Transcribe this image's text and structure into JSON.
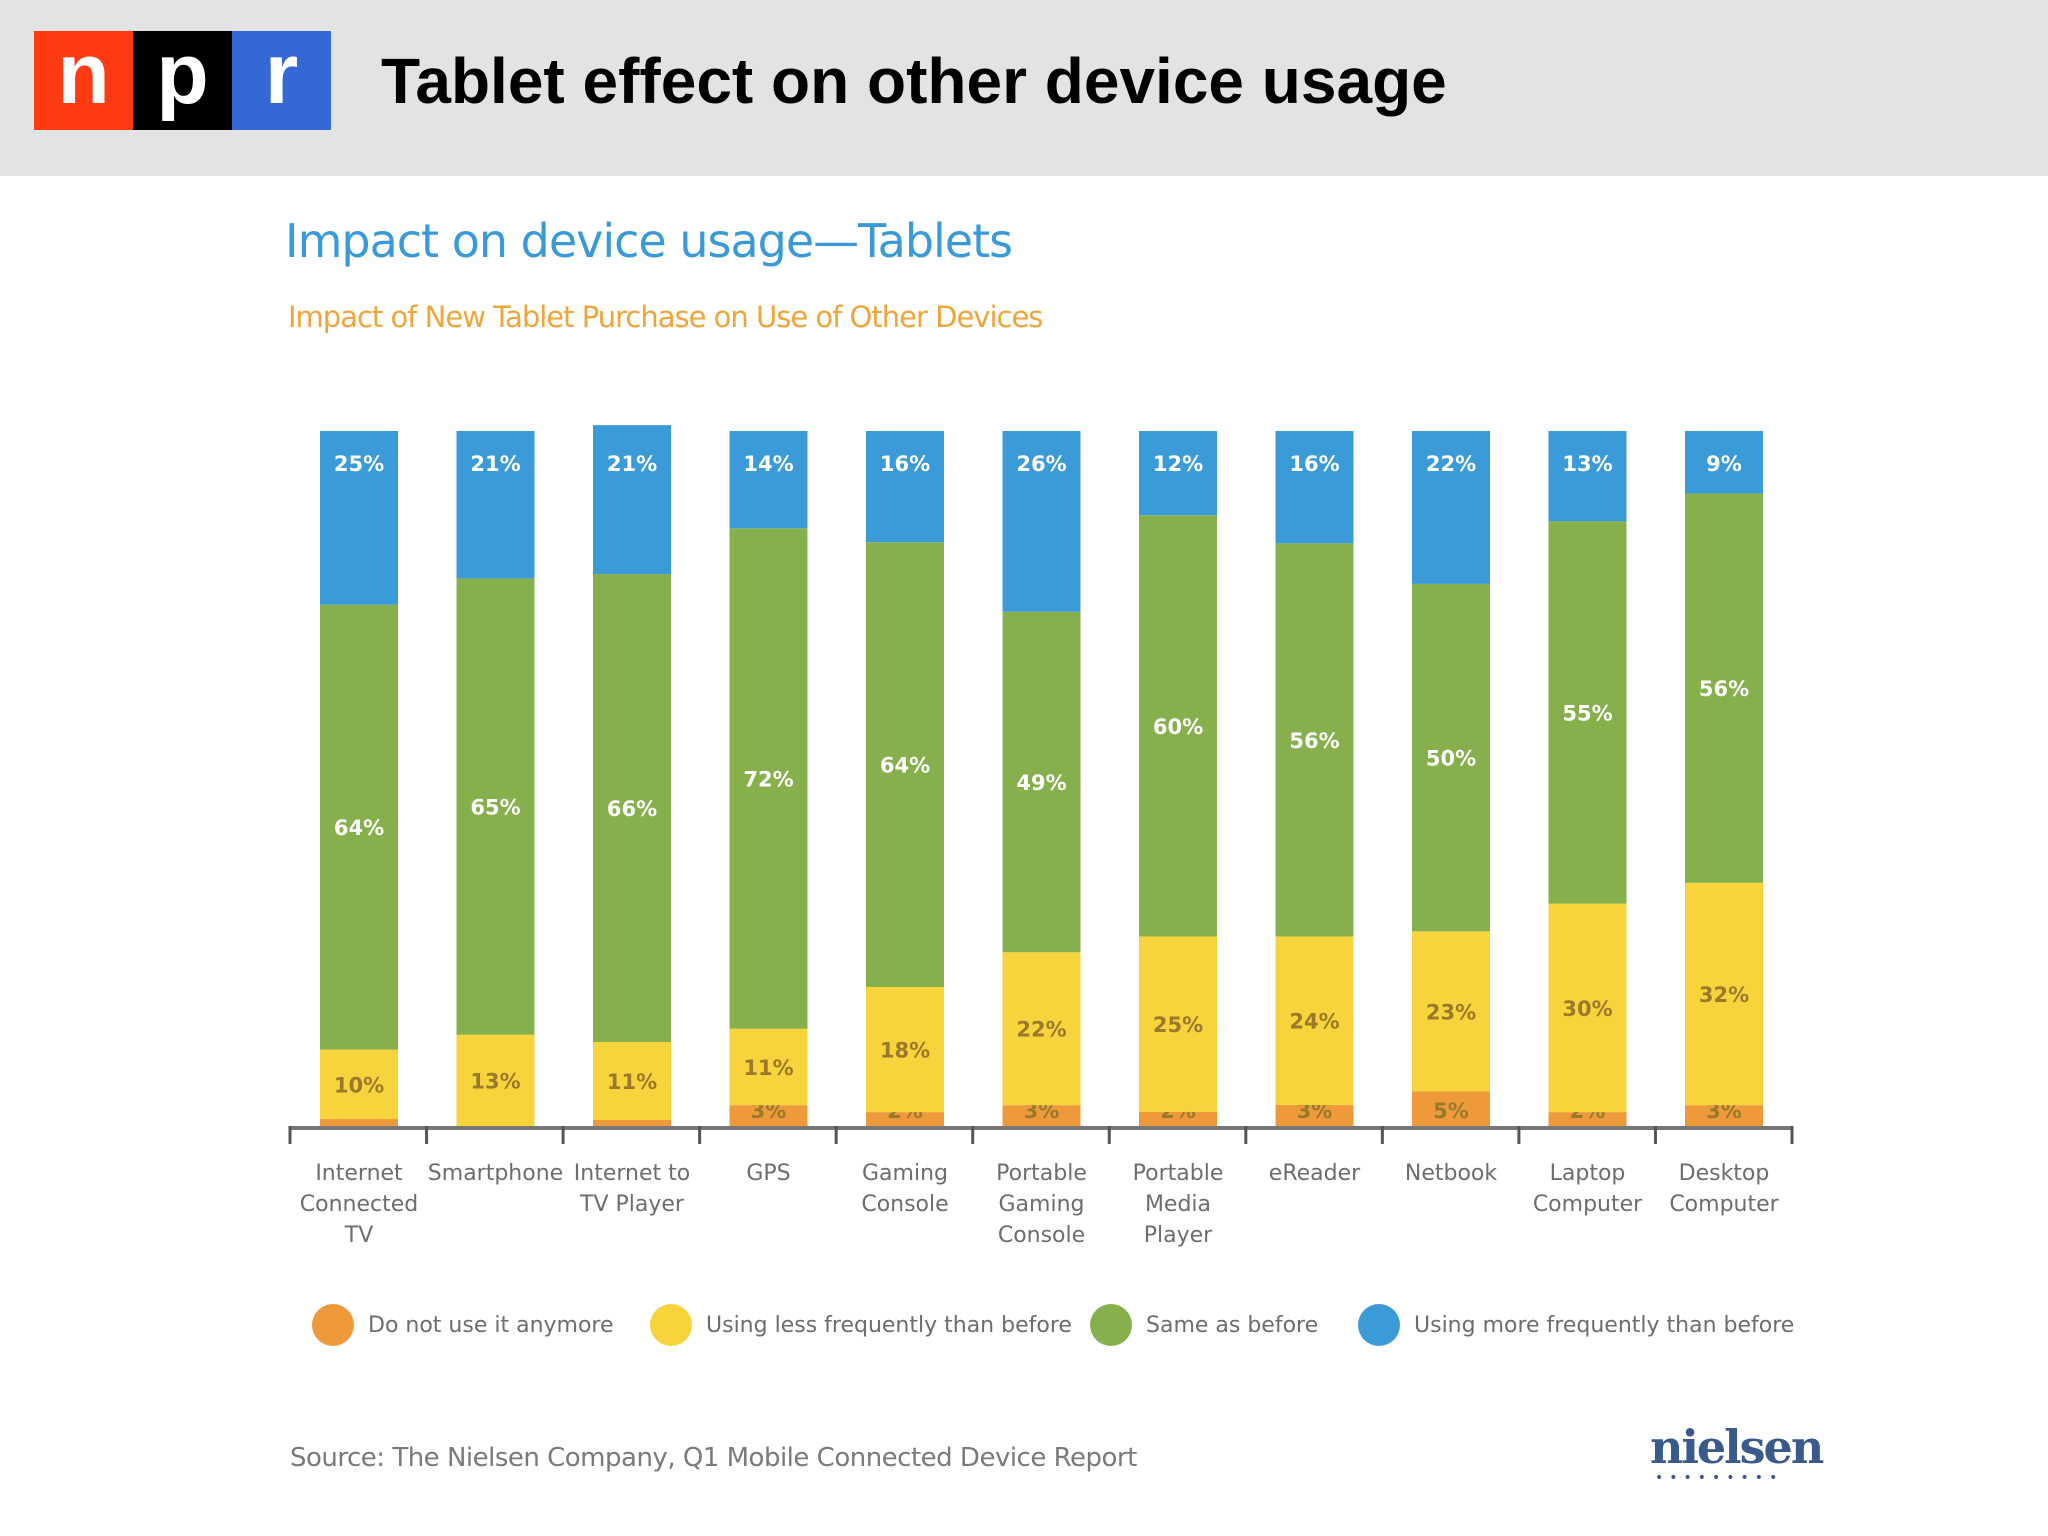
{
  "header": {
    "logo_letters": [
      "n",
      "p",
      "r"
    ],
    "logo_colors": [
      "#ff3b14",
      "#000000",
      "#3468d6"
    ],
    "title": "Tablet effect on other device usage"
  },
  "chart_data": {
    "type": "bar",
    "stacked": true,
    "title": "Impact on device usage—Tablets",
    "subtitle": "Impact of New Tablet Purchase on Use of Other Devices",
    "categories": [
      "Internet\nConnected\nTV",
      "Smartphone",
      "Internet to\nTV Player",
      "GPS",
      "Gaming\nConsole",
      "Portable\nGaming\nConsole",
      "Portable\nMedia\nPlayer",
      "eReader",
      "Netbook",
      "Laptop\nComputer",
      "Desktop\nComputer"
    ],
    "series": [
      {
        "name": "Do not use it anymore",
        "color": "#ee9a3a",
        "values": [
          1,
          null,
          0.02,
          3,
          2,
          3,
          2,
          3,
          5,
          2,
          3
        ]
      },
      {
        "name": "Using less frequently than before",
        "color": "#f7d43c",
        "values": [
          10,
          13,
          11,
          11,
          18,
          22,
          25,
          24,
          23,
          30,
          32
        ]
      },
      {
        "name": "Same as before",
        "color": "#86b04c",
        "values": [
          64,
          65,
          66,
          72,
          64,
          49,
          60,
          56,
          50,
          55,
          56
        ]
      },
      {
        "name": "Using more frequently than before",
        "color": "#3b9bd8",
        "values": [
          25,
          21,
          21,
          14,
          16,
          26,
          12,
          16,
          22,
          13,
          9
        ]
      }
    ],
    "value_format": "percent",
    "legend": "bottom",
    "grid": false
  },
  "source": "Source: The Nielsen Company, Q1 Mobile Connected Device Report",
  "brand": "nielsen"
}
